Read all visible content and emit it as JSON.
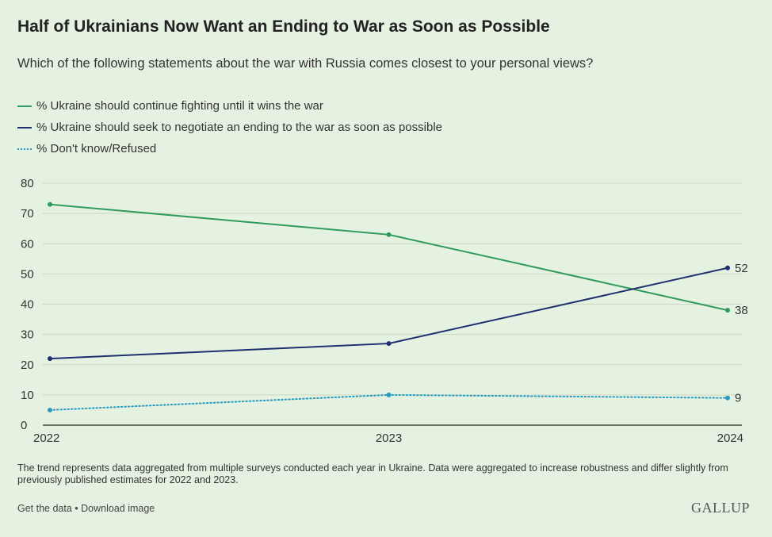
{
  "title": "Half of Ukrainians Now Want an Ending to War as Soon as Possible",
  "subtitle": "Which of the following statements about the war with Russia comes closest to your personal views?",
  "note": "The trend represents data aggregated from multiple surveys conducted each year in Ukraine. Data were aggregated to increase robustness and differ slightly from previously published estimates for 2022 and 2023.",
  "footer": {
    "get_data": "Get the data",
    "separator": " • ",
    "download": "Download image",
    "brand": "GALLUP"
  },
  "chart_data": {
    "type": "line",
    "x": [
      2022,
      2023,
      2024
    ],
    "ylim": [
      0,
      80
    ],
    "yticks": [
      0,
      10,
      20,
      30,
      40,
      50,
      60,
      70,
      80
    ],
    "grid": true,
    "legend_position": "top-left",
    "series": [
      {
        "name": "% Ukraine should continue fighting until it wins the war",
        "values": [
          73,
          63,
          38
        ],
        "end_label": "38",
        "color": "#2e9a5b",
        "style": "solid"
      },
      {
        "name": "% Ukraine should seek to negotiate an ending to the war as soon as possible",
        "values": [
          22,
          27,
          52
        ],
        "end_label": "52",
        "color": "#1d2f6e",
        "style": "solid"
      },
      {
        "name": "% Don't know/Refused",
        "values": [
          5,
          10,
          9
        ],
        "end_label": "9",
        "color": "#2a9bc0",
        "style": "dotted"
      }
    ]
  }
}
